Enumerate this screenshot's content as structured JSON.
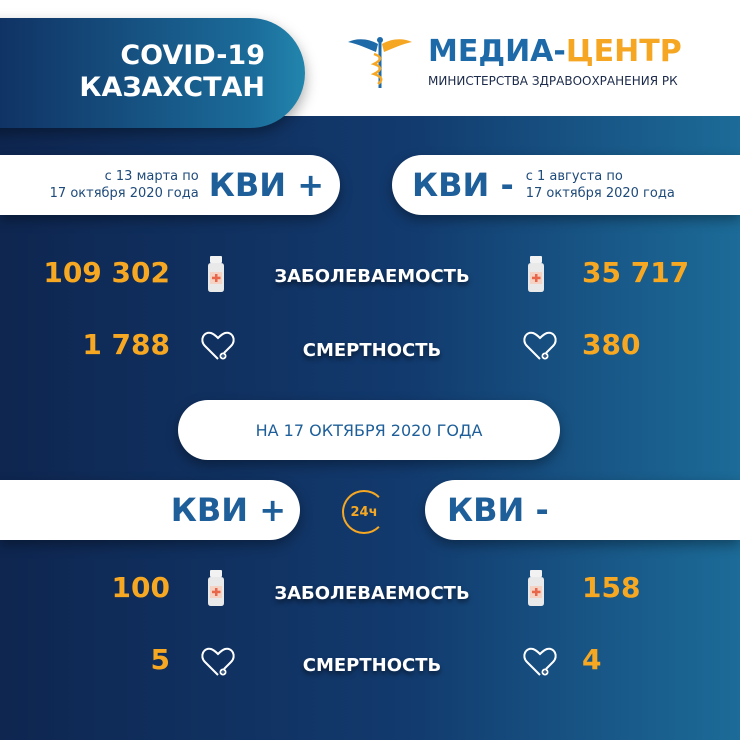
{
  "header": {
    "title_line1": "COVID-19",
    "title_line2": "КАЗАХСТАН",
    "brand_part1": "МЕДИА-",
    "brand_part2": "ЦЕНТР",
    "brand_subtitle": "МИНИСТЕРСТВА ЗДРАВООХРАНЕНИЯ РК"
  },
  "colors": {
    "accent": "#f7a823",
    "brand_blue": "#1e5f9a",
    "bg_dark": "#0e2650",
    "bg_light": "#1c6b98"
  },
  "cumulative": {
    "positive": {
      "label": "КВИ +",
      "period_line1": "с 13 марта по",
      "period_line2": "17 октября 2020 года",
      "cases": "109 302",
      "deaths": "1 788"
    },
    "negative": {
      "label": "КВИ -",
      "period_line1": "с 1 августа  по",
      "period_line2": "17 октября 2020 года",
      "cases": "35 717",
      "deaths": "380"
    }
  },
  "labels": {
    "cases": "ЗАБОЛЕВАЕМОСТЬ",
    "deaths": "СМЕРТНОСТЬ"
  },
  "daily": {
    "date_label": "НА 17 ОКТЯБРЯ  2020 ГОДА",
    "badge": "24ч",
    "positive": {
      "label": "КВИ +",
      "cases": "100",
      "deaths": "5"
    },
    "negative": {
      "label": "КВИ -",
      "cases": "158",
      "deaths": "4"
    }
  },
  "icons": [
    "caduceus-logo",
    "medicine-bottle-icon",
    "heart-icon",
    "24h-clock-icon"
  ]
}
